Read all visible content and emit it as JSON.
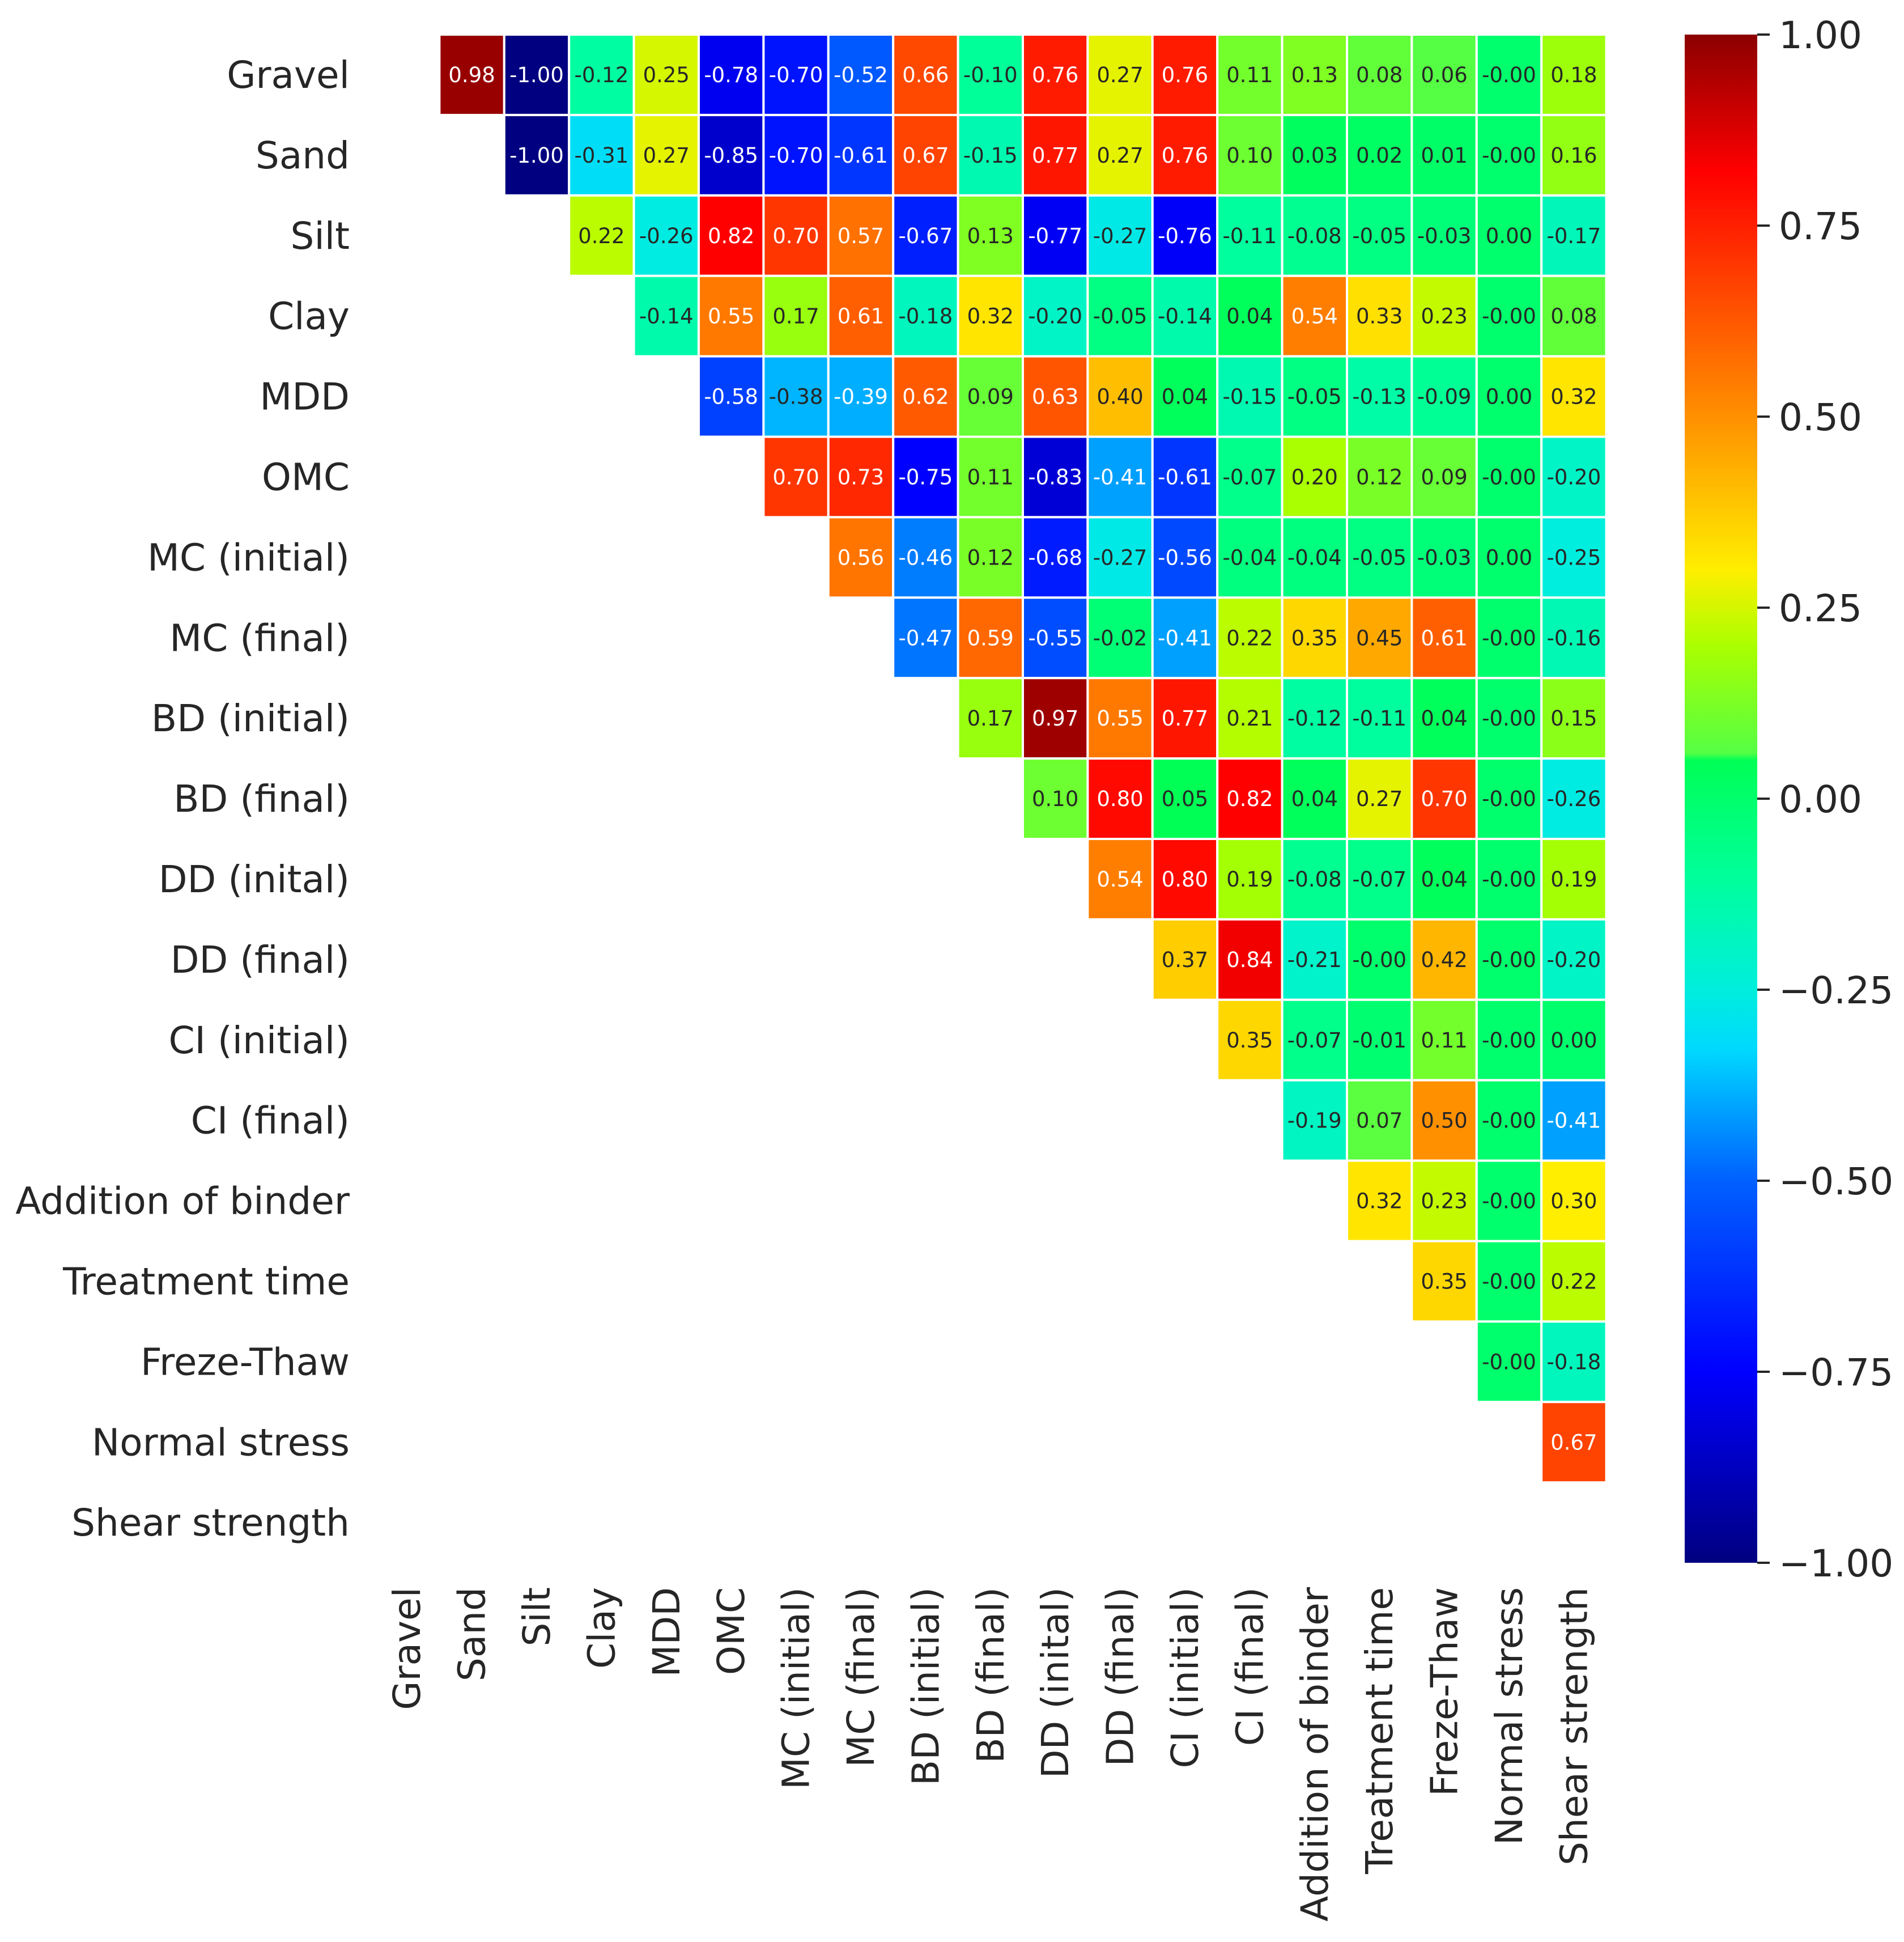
{
  "chart_data": {
    "type": "heatmap",
    "title": "",
    "variables": [
      "Gravel",
      "Sand",
      "Silt",
      "Clay",
      "MDD",
      "OMC",
      "MC (initial)",
      "MC (final)",
      "BD (initial)",
      "BD (final)",
      "DD (inital)",
      "DD (final)",
      "CI (initial)",
      "CI (final)",
      "Addition of binder",
      "Treatment time",
      "Freze-Thaw",
      "Normal stress",
      "Shear strength"
    ],
    "mask": "lower triangle and diagonal hidden",
    "upper_triangle_values": [
      [
        "0.98",
        "-1.00",
        "-0.12",
        "0.25",
        "-0.78",
        "-0.70",
        "-0.52",
        "0.66",
        "-0.10",
        "0.76",
        "0.27",
        "0.76",
        "0.11",
        "0.13",
        "0.08",
        "0.06",
        "-0.00",
        "0.18"
      ],
      [
        "-1.00",
        "-0.31",
        "0.27",
        "-0.85",
        "-0.70",
        "-0.61",
        "0.67",
        "-0.15",
        "0.77",
        "0.27",
        "0.76",
        "0.10",
        "0.03",
        "0.02",
        "0.01",
        "-0.00",
        "0.16"
      ],
      [
        "0.22",
        "-0.26",
        "0.82",
        "0.70",
        "0.57",
        "-0.67",
        "0.13",
        "-0.77",
        "-0.27",
        "-0.76",
        "-0.11",
        "-0.08",
        "-0.05",
        "-0.03",
        "0.00",
        "-0.17"
      ],
      [
        "-0.14",
        "0.55",
        "0.17",
        "0.61",
        "-0.18",
        "0.32",
        "-0.20",
        "-0.05",
        "-0.14",
        "0.04",
        "0.54",
        "0.33",
        "0.23",
        "-0.00",
        "0.08"
      ],
      [
        "-0.58",
        "-0.38",
        "-0.39",
        "0.62",
        "0.09",
        "0.63",
        "0.40",
        "0.04",
        "-0.15",
        "-0.05",
        "-0.13",
        "-0.09",
        "0.00",
        "0.32"
      ],
      [
        "0.70",
        "0.73",
        "-0.75",
        "0.11",
        "-0.83",
        "-0.41",
        "-0.61",
        "-0.07",
        "0.20",
        "0.12",
        "0.09",
        "-0.00",
        "-0.20"
      ],
      [
        "0.56",
        "-0.46",
        "0.12",
        "-0.68",
        "-0.27",
        "-0.56",
        "-0.04",
        "-0.04",
        "-0.05",
        "-0.03",
        "0.00",
        "-0.25"
      ],
      [
        "-0.47",
        "0.59",
        "-0.55",
        "-0.02",
        "-0.41",
        "0.22",
        "0.35",
        "0.45",
        "0.61",
        "-0.00",
        "-0.16"
      ],
      [
        "0.17",
        "0.97",
        "0.55",
        "0.77",
        "0.21",
        "-0.12",
        "-0.11",
        "0.04",
        "-0.00",
        "0.15"
      ],
      [
        "0.10",
        "0.80",
        "0.05",
        "0.82",
        "0.04",
        "0.27",
        "0.70",
        "-0.00",
        "-0.26"
      ],
      [
        "0.54",
        "0.80",
        "0.19",
        "-0.08",
        "-0.07",
        "0.04",
        "-0.00",
        "0.19"
      ],
      [
        "0.37",
        "0.84",
        "-0.21",
        "-0.00",
        "0.42",
        "-0.00",
        "-0.20"
      ],
      [
        "0.35",
        "-0.07",
        "-0.01",
        "0.11",
        "-0.00",
        "0.00"
      ],
      [
        "-0.19",
        "0.07",
        "0.50",
        "-0.00",
        "-0.41"
      ],
      [
        "0.32",
        "0.23",
        "-0.00",
        "0.30"
      ],
      [
        "0.35",
        "-0.00",
        "0.22"
      ],
      [
        "-0.00",
        "-0.18"
      ],
      [
        "0.67"
      ],
      []
    ],
    "colorbar": {
      "range": [
        -1,
        1
      ],
      "ticks": [
        "1.00",
        "0.75",
        "0.50",
        "0.25",
        "0.00",
        "−0.25",
        "−0.50",
        "−0.75",
        "−1.00"
      ],
      "tick_values": [
        1,
        0.75,
        0.5,
        0.25,
        0,
        -0.25,
        -0.5,
        -0.75,
        -1
      ],
      "colors": [
        {
          "v": 1.0,
          "c": "#8b0000"
        },
        {
          "v": 0.82,
          "c": "#ff0000"
        },
        {
          "v": 0.5,
          "c": "#ff9000"
        },
        {
          "v": 0.3,
          "c": "#ffee00"
        },
        {
          "v": 0.2,
          "c": "#aaff00"
        },
        {
          "v": 0.06,
          "c": "#55ff44"
        },
        {
          "v": 0.05,
          "c": "#00ff55"
        },
        {
          "v": -0.1,
          "c": "#00ff99"
        },
        {
          "v": -0.25,
          "c": "#00eedd"
        },
        {
          "v": -0.33,
          "c": "#00d8ff"
        },
        {
          "v": -0.5,
          "c": "#0060ff"
        },
        {
          "v": -0.75,
          "c": "#0000ff"
        },
        {
          "v": -1.0,
          "c": "#000080"
        }
      ]
    }
  }
}
